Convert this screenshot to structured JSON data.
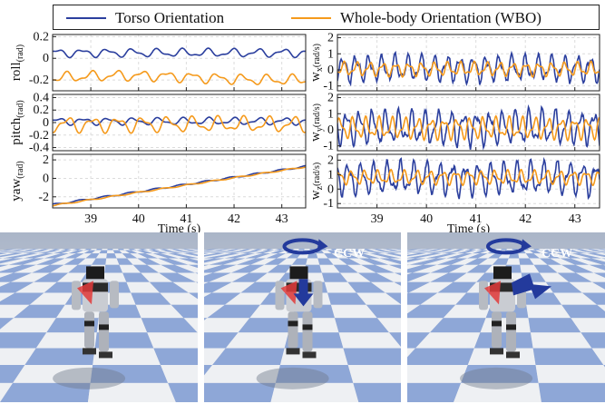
{
  "legend": {
    "torso_label": "Torso Orientation",
    "wbo_label": "Whole-body Orientation (WBO)"
  },
  "colors": {
    "torso": "#2b3f9e",
    "wbo": "#f59a1c",
    "sky": "#c4ccd8",
    "checker_blue": "#8ea7d7",
    "checker_white": "#eef0f3",
    "arrow_blue": "#233a9c",
    "arrow_red": "#e23a3a"
  },
  "images": {
    "ccw_label_1": "CCW",
    "ccw_label_2": "CCW"
  },
  "chart_data": [
    {
      "type": "line",
      "ylabel": "roll",
      "ylabel_sub": "(rad)",
      "xlim": [
        38.2,
        43.5
      ],
      "ylim": [
        -0.3,
        0.22
      ],
      "yticks": [
        -0.2,
        0,
        0.2
      ],
      "ytick_labels": [
        "-0.2",
        "0",
        "0.2"
      ],
      "series": [
        {
          "name": "Torso Orientation",
          "base": 0.05,
          "amp": 0.04,
          "freq": 1.9,
          "trend": 0.0
        },
        {
          "name": "Whole-body Orientation (WBO)",
          "base": -0.18,
          "amp": 0.05,
          "freq": 1.9,
          "trend": 0.02
        }
      ]
    },
    {
      "type": "line",
      "ylabel": "pitch",
      "ylabel_sub": "(rad)",
      "xlim": [
        38.2,
        43.5
      ],
      "ylim": [
        -0.45,
        0.45
      ],
      "yticks": [
        -0.4,
        -0.2,
        0,
        0.2,
        0.4
      ],
      "ytick_labels": [
        "-0.4",
        "-0.2",
        "0",
        "0.2",
        "0.4"
      ],
      "series": [
        {
          "name": "Torso Orientation",
          "base": 0.02,
          "amp": 0.06,
          "freq": 1.9,
          "trend": 0.0
        },
        {
          "name": "Whole-body Orientation (WBO)",
          "base": -0.03,
          "amp": 0.13,
          "freq": 1.9,
          "trend": 0.0
        }
      ]
    },
    {
      "type": "line",
      "ylabel": "yaw",
      "ylabel_sub": "(rad)",
      "xlabel": "Time (s)",
      "xlim": [
        38.2,
        43.5
      ],
      "ylim": [
        -3.2,
        2.6
      ],
      "xticks": [
        39,
        40,
        41,
        42,
        43
      ],
      "xtick_labels": [
        "39",
        "40",
        "41",
        "42",
        "43"
      ],
      "yticks": [
        -2,
        0,
        2
      ],
      "ytick_labels": [
        "-2",
        "0",
        "2"
      ],
      "series": [
        {
          "name": "Torso Orientation",
          "start": -2.85,
          "end": 1.3,
          "amp": 0.08,
          "freq": 1.9
        },
        {
          "name": "Whole-body Orientation (WBO)",
          "start": -2.95,
          "end": 1.25,
          "amp": 0.06,
          "freq": 1.9
        }
      ]
    },
    {
      "type": "line",
      "ylabel": "w",
      "ylabel_sub": "x",
      "ylabel_unit": "(rad/s)",
      "xlim": [
        38.2,
        43.5
      ],
      "ylim": [
        -1.3,
        2.2
      ],
      "yticks": [
        -1,
        0,
        1,
        2
      ],
      "ytick_labels": [
        "-1",
        "0",
        "1",
        "2"
      ],
      "series": [
        {
          "name": "Torso Orientation",
          "base": 0.1,
          "amp": 0.85,
          "freq": 3.8
        },
        {
          "name": "Whole-body Orientation (WBO)",
          "base": 0.05,
          "amp": 0.45,
          "freq": 3.8
        }
      ]
    },
    {
      "type": "line",
      "ylabel": "w",
      "ylabel_sub": "y",
      "ylabel_unit": "(rad/s)",
      "xlim": [
        38.2,
        43.5
      ],
      "ylim": [
        -1.3,
        2.2
      ],
      "yticks": [
        -1,
        0,
        1,
        2
      ],
      "ytick_labels": [
        "-1",
        "0",
        "1",
        "2"
      ],
      "series": [
        {
          "name": "Torso Orientation",
          "base": 0.15,
          "amp": 1.1,
          "freq": 3.8
        },
        {
          "name": "Whole-body Orientation (WBO)",
          "base": 0.1,
          "amp": 0.7,
          "freq": 3.8
        }
      ]
    },
    {
      "type": "line",
      "ylabel": "w",
      "ylabel_sub": "z",
      "ylabel_unit": "(rad/s)",
      "xlabel": "Time (s)",
      "xlim": [
        38.2,
        43.5
      ],
      "ylim": [
        -1.3,
        2.4
      ],
      "xticks": [
        39,
        40,
        41,
        42,
        43
      ],
      "xtick_labels": [
        "39",
        "40",
        "41",
        "42",
        "43"
      ],
      "yticks": [
        -1,
        0,
        1,
        2
      ],
      "ytick_labels": [
        "-1",
        "0",
        "1",
        "2"
      ],
      "series": [
        {
          "name": "Torso Orientation",
          "base": 0.75,
          "amp": 1.2,
          "freq": 3.8
        },
        {
          "name": "Whole-body Orientation (WBO)",
          "base": 0.8,
          "amp": 0.5,
          "freq": 3.8
        }
      ]
    }
  ]
}
